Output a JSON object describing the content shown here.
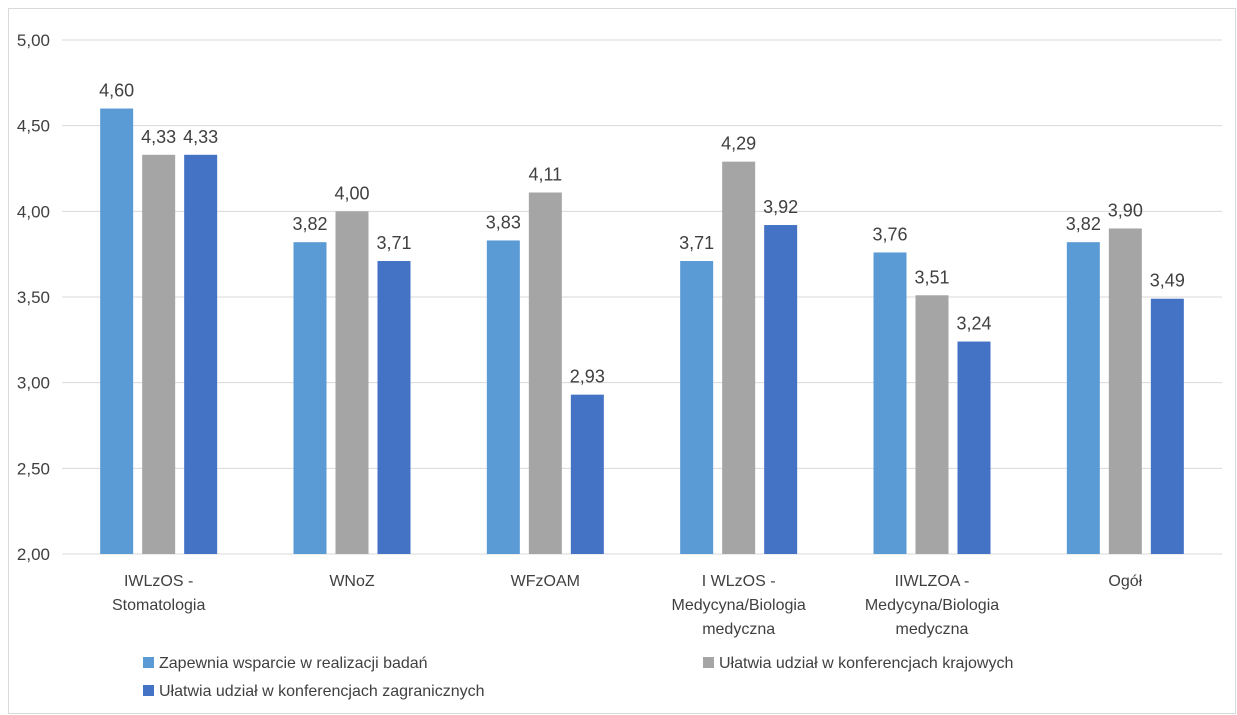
{
  "chart_data": {
    "type": "bar",
    "categories": [
      [
        "IWLzOS -",
        "Stomatologia"
      ],
      [
        "WNoZ"
      ],
      [
        "WFzOAM"
      ],
      [
        "I WLzOS -",
        "Medycyna/Biologia",
        "medyczna"
      ],
      [
        "IIWLZOA -",
        "Medycyna/Biologia",
        "medyczna"
      ],
      [
        "Ogół"
      ]
    ],
    "series": [
      {
        "name": "Zapewnia wsparcie w realizacji badań",
        "color": "#5b9bd5",
        "values": [
          4.6,
          3.82,
          3.83,
          3.71,
          3.76,
          3.82
        ],
        "labels": [
          "4,60",
          "3,82",
          "3,83",
          "3,71",
          "3,76",
          "3,82"
        ]
      },
      {
        "name": "Ułatwia udział w konferencjach krajowych",
        "color": "#a5a5a5",
        "values": [
          4.33,
          4.0,
          4.11,
          4.29,
          3.51,
          3.9
        ],
        "labels": [
          "4,33",
          "4,00",
          "4,11",
          "4,29",
          "3,51",
          "3,90"
        ]
      },
      {
        "name": "Ułatwia udział w konferencjach zagranicznych",
        "color": "#4472c4",
        "values": [
          4.33,
          3.71,
          2.93,
          3.92,
          3.24,
          3.49
        ],
        "labels": [
          "4,33",
          "3,71",
          "2,93",
          "3,92",
          "3,24",
          "3,49"
        ]
      }
    ],
    "ylim": [
      2.0,
      5.0
    ],
    "yticks": [
      2.0,
      2.5,
      3.0,
      3.5,
      4.0,
      4.5,
      5.0
    ],
    "ytick_labels": [
      "2,00",
      "2,50",
      "3,00",
      "3,50",
      "4,00",
      "4,50",
      "5,00"
    ],
    "grid": true,
    "legend_position": "bottom",
    "gridline_color": "#d9d9d9",
    "text_color": "#404040"
  }
}
